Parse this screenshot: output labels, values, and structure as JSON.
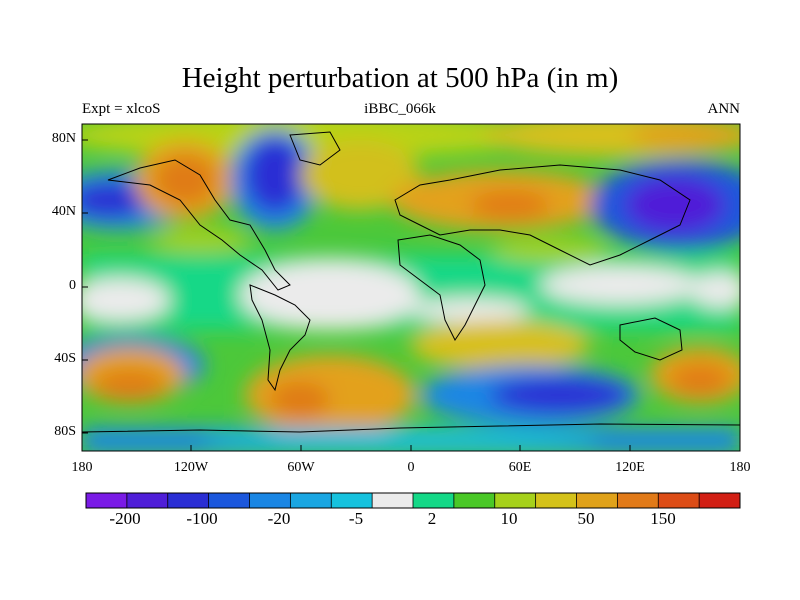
{
  "title": "Height perturbation at 500 hPa (in m)",
  "subtitle_left": "Expt = xlcoS",
  "subtitle_center": "iBBC_066k",
  "subtitle_right": "ANN",
  "y_ticks": [
    "80N",
    "40N",
    "0",
    "40S",
    "80S"
  ],
  "x_ticks": [
    "180",
    "120W",
    "60W",
    "0",
    "60E",
    "120E",
    "180"
  ],
  "colorbar": {
    "colors": [
      "#7a1be6",
      "#4f1ed8",
      "#2a2ed4",
      "#1b57dc",
      "#1a86e4",
      "#1aa6e2",
      "#16c2de",
      "#ebebeb",
      "#14d887",
      "#4ac827",
      "#a6d11b",
      "#d4c21a",
      "#e0a21a",
      "#e17a18",
      "#dc4c16",
      "#d21f14"
    ],
    "labels": [
      "-200",
      "-100",
      "-20",
      "-5",
      "2",
      "10",
      "50",
      "150"
    ]
  }
}
